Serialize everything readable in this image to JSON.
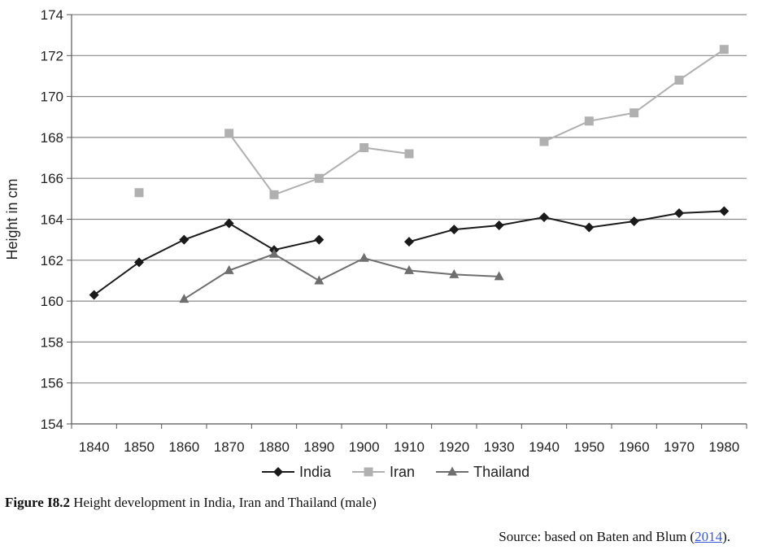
{
  "chart_data": {
    "type": "line",
    "title": "",
    "xlabel": "",
    "ylabel": "Height in cm",
    "ylim": [
      154,
      174
    ],
    "yticks": [
      154,
      156,
      158,
      160,
      162,
      164,
      166,
      168,
      170,
      172,
      174
    ],
    "xticks": [
      "1840",
      "1850",
      "1860",
      "1870",
      "1880",
      "1890",
      "1900",
      "1910",
      "1920",
      "1930",
      "1940",
      "1950",
      "1960",
      "1970",
      "1980"
    ],
    "grid": "horizontal",
    "legend_position": "bottom",
    "series": [
      {
        "name": "India",
        "color": "#1a1a1a",
        "marker": "diamond",
        "segments": [
          [
            [
              1840,
              160.3
            ],
            [
              1850,
              161.9
            ],
            [
              1860,
              163.0
            ],
            [
              1870,
              163.8
            ],
            [
              1880,
              162.5
            ],
            [
              1890,
              163.0
            ]
          ],
          [
            [
              1910,
              162.9
            ],
            [
              1920,
              163.5
            ],
            [
              1930,
              163.7
            ],
            [
              1940,
              164.1
            ],
            [
              1950,
              163.6
            ],
            [
              1960,
              163.9
            ],
            [
              1970,
              164.3
            ],
            [
              1980,
              164.4
            ]
          ]
        ]
      },
      {
        "name": "Iran",
        "color": "#b0b0b0",
        "marker": "square",
        "segments": [
          [
            [
              1850,
              165.3
            ]
          ],
          [
            [
              1870,
              168.2
            ],
            [
              1880,
              165.2
            ],
            [
              1890,
              166.0
            ],
            [
              1900,
              167.5
            ],
            [
              1910,
              167.2
            ]
          ],
          [
            [
              1940,
              167.8
            ],
            [
              1950,
              168.8
            ],
            [
              1960,
              169.2
            ],
            [
              1970,
              170.8
            ],
            [
              1980,
              172.3
            ]
          ]
        ]
      },
      {
        "name": "Thailand",
        "color": "#6e6e6e",
        "marker": "triangle",
        "segments": [
          [
            [
              1860,
              160.1
            ],
            [
              1870,
              161.5
            ],
            [
              1880,
              162.3
            ],
            [
              1890,
              161.0
            ],
            [
              1900,
              162.1
            ],
            [
              1910,
              161.5
            ],
            [
              1920,
              161.3
            ],
            [
              1930,
              161.2
            ]
          ]
        ]
      }
    ]
  },
  "caption": {
    "label": "Figure I8.2",
    "text": " Height development in India, Iran and Thailand (male)"
  },
  "source": {
    "prefix": "Source: based on Baten and Blum (",
    "link_text": "2014",
    "suffix": ")."
  }
}
